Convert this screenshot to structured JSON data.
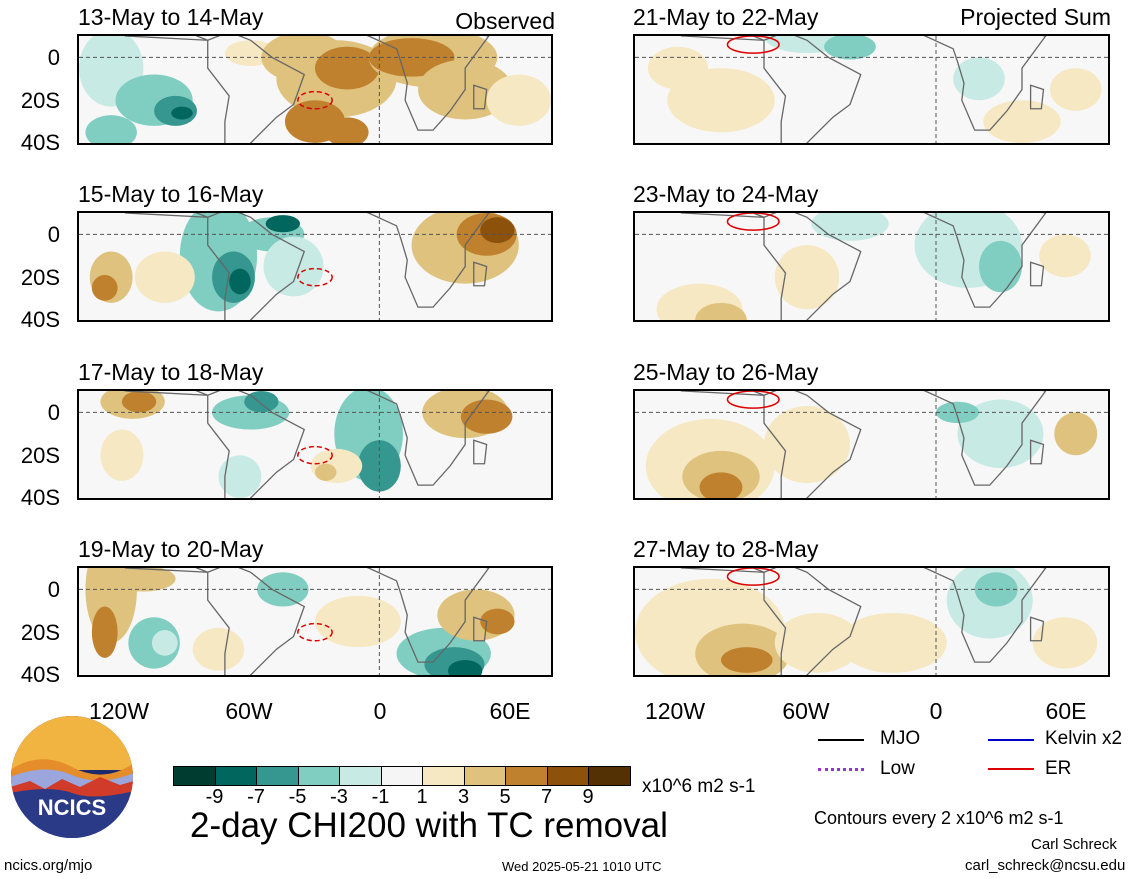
{
  "chart_data": {
    "type": "heatmap",
    "variable_title": "2-day CHI200 with TC removal",
    "units": "x10^6 m2 s-1",
    "contour_note": "Contours every 2 x10^6 m2 s-1",
    "x_ticks": [
      "120W",
      "60W",
      "0",
      "60E"
    ],
    "x_tick_values": [
      -120,
      -60,
      0,
      60
    ],
    "y_ticks": [
      "0",
      "20S",
      "40S"
    ],
    "y_tick_values": [
      0,
      -20,
      -40
    ],
    "xlim": [
      -140,
      80
    ],
    "ylim": [
      -40,
      10
    ],
    "colorbar": {
      "levels": [
        "-9",
        "-7",
        "-5",
        "-3",
        "-1",
        "1",
        "3",
        "5",
        "7",
        "9"
      ],
      "colors": [
        "#013c30",
        "#01665e",
        "#35978f",
        "#80cdc1",
        "#c7eae5",
        "#f5f5f5",
        "#f6e8c3",
        "#dfc27d",
        "#bf812d",
        "#8c510a",
        "#543005"
      ]
    },
    "columns": [
      "Observed",
      "Projected Sum"
    ],
    "panels": [
      {
        "period": "13-May to 14-May",
        "column": "Observed"
      },
      {
        "period": "15-May to 16-May",
        "column": "Observed"
      },
      {
        "period": "17-May to 18-May",
        "column": "Observed"
      },
      {
        "period": "19-May to 20-May",
        "column": "Observed"
      },
      {
        "period": "21-May to 22-May",
        "column": "Projected Sum"
      },
      {
        "period": "23-May to 24-May",
        "column": "Projected Sum"
      },
      {
        "period": "25-May to 26-May",
        "column": "Projected Sum"
      },
      {
        "period": "27-May to 28-May",
        "column": "Projected Sum"
      }
    ],
    "legend": [
      {
        "name": "MJO",
        "color": "#000000",
        "style": "solid"
      },
      {
        "name": "Kelvin x2",
        "color": "#0000cc",
        "style": "solid"
      },
      {
        "name": "Low",
        "color": "#9933cc",
        "style": "dotted"
      },
      {
        "name": "ER",
        "color": "#dd0000",
        "style": "solid"
      }
    ]
  },
  "footer": {
    "logo_text": "NCICS",
    "url": "ncics.org/mjo",
    "timestamp": "Wed 2025-05-21 1010 UTC",
    "author": "Carl Schreck",
    "email": "carl_schreck@ncsu.edu"
  }
}
